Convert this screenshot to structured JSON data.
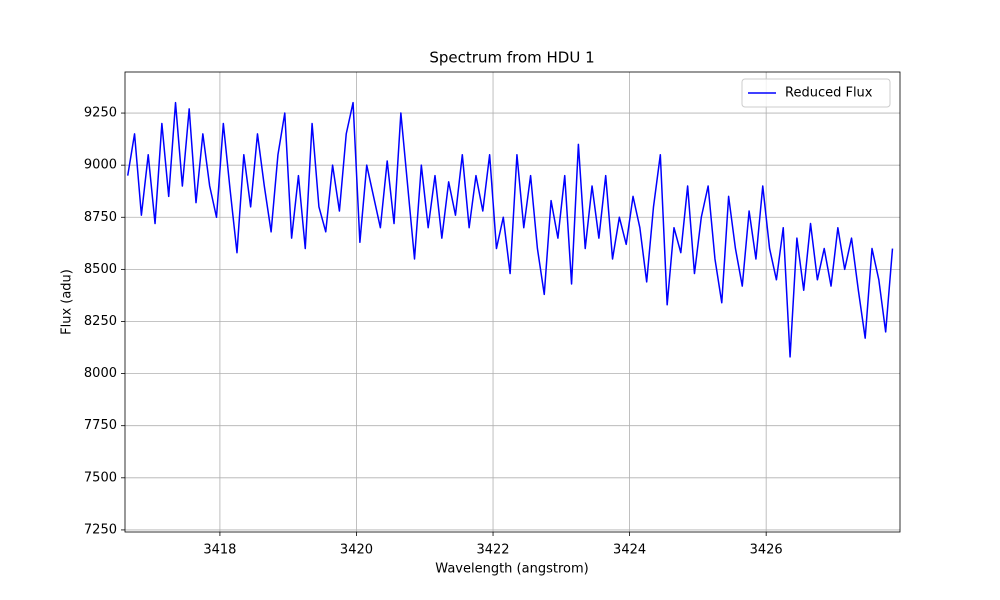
{
  "chart_data": {
    "type": "line",
    "title": "Spectrum from HDU 1",
    "xlabel": "Wavelength (angstrom)",
    "ylabel": "Flux (adu)",
    "x": [
      3416.65,
      3416.75,
      3416.85,
      3416.95,
      3417.05,
      3417.15,
      3417.25,
      3417.35,
      3417.45,
      3417.55,
      3417.65,
      3417.75,
      3417.85,
      3417.95,
      3418.05,
      3418.15,
      3418.25,
      3418.35,
      3418.45,
      3418.55,
      3418.65,
      3418.75,
      3418.85,
      3418.95,
      3419.05,
      3419.15,
      3419.25,
      3419.35,
      3419.45,
      3419.55,
      3419.65,
      3419.75,
      3419.85,
      3419.95,
      3420.05,
      3420.15,
      3420.25,
      3420.35,
      3420.45,
      3420.55,
      3420.65,
      3420.75,
      3420.85,
      3420.95,
      3421.05,
      3421.15,
      3421.25,
      3421.35,
      3421.45,
      3421.55,
      3421.65,
      3421.75,
      3421.85,
      3421.95,
      3422.05,
      3422.15,
      3422.25,
      3422.35,
      3422.45,
      3422.55,
      3422.65,
      3422.75,
      3422.85,
      3422.95,
      3423.05,
      3423.15,
      3423.25,
      3423.35,
      3423.45,
      3423.55,
      3423.65,
      3423.75,
      3423.85,
      3423.95,
      3424.05,
      3424.15,
      3424.25,
      3424.35,
      3424.45,
      3424.55,
      3424.65,
      3424.75,
      3424.85,
      3424.95,
      3425.05,
      3425.15,
      3425.25,
      3425.35,
      3425.45,
      3425.55,
      3425.65,
      3425.75,
      3425.85,
      3425.95,
      3426.05,
      3426.15,
      3426.25,
      3426.35,
      3426.45,
      3426.55,
      3426.65,
      3426.75,
      3426.85,
      3426.95,
      3427.05,
      3427.15,
      3427.25,
      3427.35,
      3427.45,
      3427.55,
      3427.65,
      3427.75,
      3427.85
    ],
    "series": [
      {
        "name": "Reduced Flux",
        "color": "#0000ff",
        "values": [
          8950,
          9150,
          8760,
          9050,
          8720,
          9200,
          8850,
          9300,
          8900,
          9270,
          8820,
          9150,
          8900,
          8750,
          9200,
          8880,
          8580,
          9050,
          8800,
          9150,
          8900,
          8680,
          9050,
          9250,
          8650,
          8950,
          8600,
          9200,
          8800,
          8680,
          9000,
          8780,
          9150,
          9300,
          8630,
          9000,
          8850,
          8700,
          9020,
          8720,
          9250,
          8900,
          8550,
          9000,
          8700,
          8950,
          8650,
          8920,
          8760,
          9050,
          8700,
          8950,
          8780,
          9050,
          8600,
          8750,
          8480,
          9050,
          8700,
          8950,
          8600,
          8380,
          8830,
          8650,
          8950,
          8430,
          9100,
          8600,
          8900,
          8650,
          8950,
          8550,
          8750,
          8620,
          8850,
          8700,
          8440,
          8800,
          9050,
          8330,
          8700,
          8580,
          8900,
          8480,
          8750,
          8900,
          8550,
          8340,
          8850,
          8600,
          8420,
          8780,
          8550,
          8900,
          8600,
          8450,
          8700,
          8080,
          8650,
          8400,
          8720,
          8450,
          8600,
          8420,
          8700,
          8500,
          8650,
          8400,
          8170,
          8600,
          8450,
          8200,
          8600
        ]
      }
    ],
    "xlim": [
      3416.61,
      3427.96
    ],
    "xticks": [
      3418,
      3420,
      3422,
      3424,
      3426
    ],
    "ylim": [
      7240,
      9447
    ],
    "yticks": [
      7250,
      7500,
      7750,
      8000,
      8250,
      8500,
      8750,
      9000,
      9250
    ],
    "grid": true,
    "legend": "upper right"
  }
}
